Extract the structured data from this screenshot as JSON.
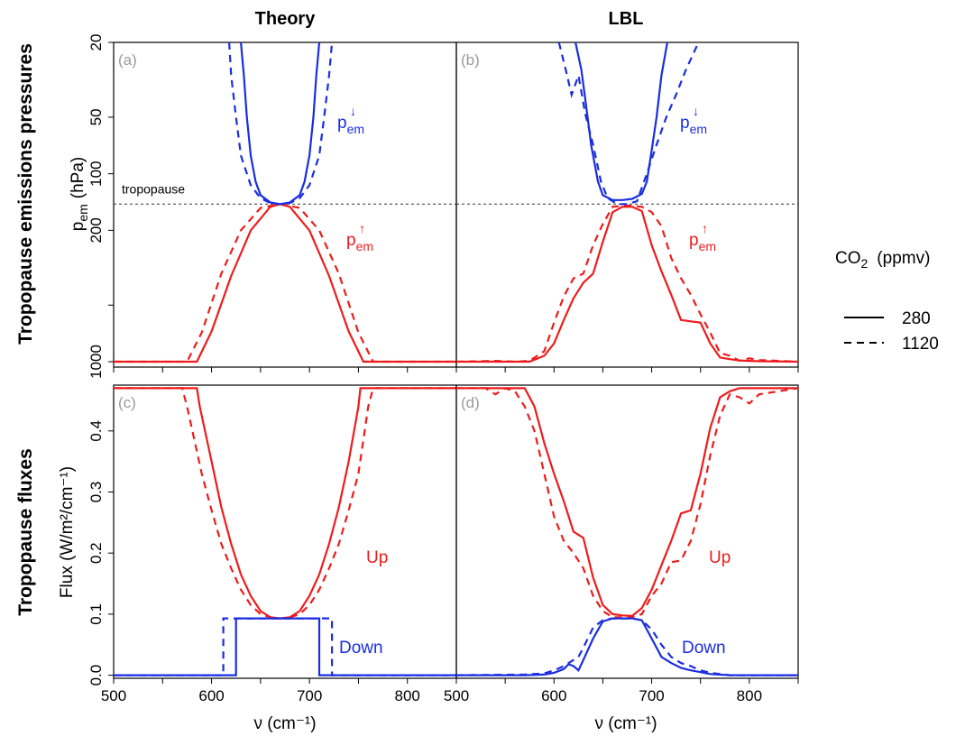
{
  "col_titles": [
    "Theory",
    "LBL"
  ],
  "row_titles": [
    "Tropopause emissions pressures",
    "Tropopause fluxes"
  ],
  "colors": {
    "up": "#ee1c1c",
    "down": "#1b2de0",
    "tag": "#9a9a9a",
    "axis": "#000000"
  },
  "legend": {
    "title_main": "CO",
    "title_sub": "2",
    "title_unit": "(ppmv)",
    "entries": [
      {
        "label": "280",
        "dash": "solid"
      },
      {
        "label": "1120",
        "dash": "dashed"
      }
    ]
  },
  "labels": {
    "pem_main": "p",
    "pem_sub": "em",
    "down_arrow": "↓",
    "up_arrow": "↑",
    "up_text": "Up",
    "down_text": "Down",
    "tropopause": "tropopause"
  },
  "axes": {
    "top_ylabel_main": "p",
    "top_ylabel_sub": "em",
    "top_ylabel_unit": "(hPa)",
    "bottom_ylabel": "Flux  (W/m²/cm⁻¹)",
    "xlabel": "ν  (cm⁻¹)",
    "top_yticks": [
      "20",
      "50",
      "100",
      "200",
      "1000"
    ],
    "bottom_yticks": [
      "0.0",
      "0.1",
      "0.2",
      "0.3",
      "0.4"
    ],
    "xticks": [
      "500",
      "600",
      "700",
      "800"
    ]
  },
  "chart_data": [
    {
      "panel": "(a)",
      "type": "line",
      "y_scale": "log-reversed",
      "ylim": [
        1000,
        20
      ],
      "xlim": [
        500,
        850
      ],
      "tropopause_hPa": 145,
      "series": [
        {
          "name": "Up 280",
          "x": [
            500,
            580,
            585,
            600,
            620,
            640,
            660,
            670,
            680,
            700,
            720,
            740,
            755,
            760,
            850
          ],
          "y": [
            1000,
            1000,
            1000,
            690,
            350,
            200,
            150,
            145,
            150,
            200,
            350,
            690,
            1000,
            1000,
            1000
          ]
        },
        {
          "name": "Up 1120",
          "x": [
            500,
            570,
            575,
            590,
            610,
            630,
            650,
            670,
            690,
            710,
            730,
            750,
            765,
            770,
            850
          ],
          "y": [
            1000,
            1000,
            1000,
            700,
            340,
            200,
            152,
            145,
            152,
            200,
            340,
            700,
            1000,
            1000,
            1000
          ]
        },
        {
          "name": "Down 280",
          "x": [
            630,
            633,
            636,
            640,
            645,
            650,
            660,
            670,
            680,
            690,
            695,
            700,
            704,
            707,
            710
          ],
          "y": [
            20,
            30,
            50,
            80,
            110,
            130,
            142,
            145,
            142,
            130,
            110,
            80,
            50,
            30,
            20
          ]
        },
        {
          "name": "Down 1120",
          "x": [
            618,
            620,
            625,
            630,
            640,
            650,
            660,
            670,
            680,
            690,
            700,
            710,
            715,
            720,
            723
          ],
          "y": [
            20,
            30,
            50,
            80,
            115,
            135,
            143,
            145,
            143,
            135,
            115,
            80,
            50,
            30,
            20
          ]
        }
      ]
    },
    {
      "panel": "(b)",
      "type": "line",
      "y_scale": "log-reversed",
      "ylim": [
        1000,
        20
      ],
      "xlim": [
        500,
        850
      ],
      "tropopause_hPa": 145,
      "series": [
        {
          "name": "Up 280",
          "x": [
            500,
            540,
            560,
            575,
            590,
            600,
            610,
            620,
            630,
            640,
            650,
            660,
            670,
            680,
            690,
            700,
            710,
            720,
            730,
            740,
            750,
            760,
            770,
            780,
            790,
            800,
            810,
            850
          ],
          "y": [
            1000,
            1000,
            1000,
            1000,
            930,
            800,
            600,
            460,
            380,
            340,
            230,
            160,
            150,
            150,
            158,
            240,
            330,
            440,
            600,
            610,
            620,
            800,
            950,
            970,
            985,
            990,
            995,
            1000
          ]
        },
        {
          "name": "Up 1120",
          "x": [
            500,
            540,
            560,
            575,
            590,
            600,
            610,
            620,
            630,
            640,
            650,
            660,
            670,
            680,
            690,
            700,
            710,
            720,
            730,
            740,
            750,
            760,
            770,
            780,
            790,
            800,
            810,
            850
          ],
          "y": [
            1000,
            990,
            1000,
            990,
            880,
            620,
            450,
            360,
            340,
            240,
            185,
            150,
            148,
            148,
            150,
            160,
            190,
            280,
            360,
            440,
            560,
            700,
            900,
            930,
            990,
            960,
            980,
            1000
          ]
        },
        {
          "name": "Down 280",
          "x": [
            622,
            628,
            632,
            638,
            645,
            650,
            660,
            670,
            680,
            690,
            695,
            700,
            705,
            710,
            716
          ],
          "y": [
            20,
            28,
            40,
            70,
            110,
            130,
            138,
            138,
            136,
            128,
            110,
            75,
            50,
            30,
            20
          ]
        },
        {
          "name": "Down 1120",
          "x": [
            605,
            612,
            618,
            625,
            632,
            640,
            648,
            655,
            665,
            675,
            685,
            695,
            705,
            715,
            725,
            735,
            748
          ],
          "y": [
            20,
            28,
            38,
            30,
            48,
            70,
            110,
            135,
            145,
            145,
            140,
            100,
            70,
            50,
            38,
            28,
            20
          ]
        }
      ]
    },
    {
      "panel": "(c)",
      "type": "line",
      "ylim": [
        -0.005,
        0.475
      ],
      "xlim": [
        500,
        850
      ],
      "series": [
        {
          "name": "Up 280",
          "x": [
            500,
            585,
            588,
            600,
            610,
            620,
            630,
            640,
            650,
            660,
            670,
            680,
            690,
            700,
            710,
            720,
            730,
            740,
            750,
            752,
            850
          ],
          "y": [
            0.47,
            0.47,
            0.44,
            0.35,
            0.275,
            0.215,
            0.165,
            0.13,
            0.105,
            0.095,
            0.093,
            0.095,
            0.105,
            0.13,
            0.165,
            0.215,
            0.275,
            0.35,
            0.44,
            0.47,
            0.47
          ]
        },
        {
          "name": "Up 1120",
          "x": [
            500,
            570,
            575,
            590,
            600,
            610,
            620,
            630,
            640,
            650,
            660,
            670,
            680,
            690,
            700,
            710,
            720,
            730,
            740,
            750,
            760,
            765,
            850
          ],
          "y": [
            0.47,
            0.47,
            0.44,
            0.33,
            0.27,
            0.215,
            0.175,
            0.14,
            0.115,
            0.1,
            0.095,
            0.093,
            0.095,
            0.1,
            0.115,
            0.14,
            0.175,
            0.215,
            0.27,
            0.33,
            0.44,
            0.47,
            0.47
          ]
        },
        {
          "name": "Down 280",
          "x": [
            500,
            625,
            625,
            710,
            710,
            850
          ],
          "y": [
            0.0,
            0.0,
            0.093,
            0.093,
            0.0,
            0.0
          ]
        },
        {
          "name": "Down 1120",
          "x": [
            500,
            612,
            612,
            723,
            723,
            850
          ],
          "y": [
            0.0,
            0.0,
            0.093,
            0.093,
            0.0,
            0.0
          ]
        }
      ]
    },
    {
      "panel": "(d)",
      "type": "line",
      "ylim": [
        -0.005,
        0.475
      ],
      "xlim": [
        500,
        850
      ],
      "series": [
        {
          "name": "Up 280",
          "x": [
            500,
            540,
            560,
            570,
            580,
            590,
            600,
            610,
            620,
            630,
            640,
            650,
            660,
            670,
            680,
            690,
            700,
            710,
            720,
            730,
            740,
            750,
            760,
            770,
            780,
            790,
            800,
            810,
            850
          ],
          "y": [
            0.47,
            0.47,
            0.47,
            0.47,
            0.44,
            0.38,
            0.33,
            0.285,
            0.235,
            0.225,
            0.16,
            0.115,
            0.1,
            0.098,
            0.097,
            0.11,
            0.14,
            0.18,
            0.22,
            0.265,
            0.27,
            0.33,
            0.405,
            0.455,
            0.465,
            0.47,
            0.47,
            0.47,
            0.47
          ]
        },
        {
          "name": "Up 1120",
          "x": [
            500,
            530,
            540,
            550,
            560,
            570,
            580,
            590,
            600,
            610,
            620,
            630,
            640,
            650,
            660,
            670,
            680,
            690,
            700,
            710,
            720,
            730,
            740,
            750,
            760,
            770,
            780,
            790,
            800,
            810,
            850
          ],
          "y": [
            0.47,
            0.47,
            0.46,
            0.47,
            0.465,
            0.44,
            0.4,
            0.33,
            0.26,
            0.22,
            0.2,
            0.175,
            0.13,
            0.105,
            0.095,
            0.095,
            0.095,
            0.1,
            0.13,
            0.15,
            0.185,
            0.188,
            0.22,
            0.28,
            0.36,
            0.425,
            0.46,
            0.455,
            0.445,
            0.46,
            0.47
          ]
        },
        {
          "name": "Down 280",
          "x": [
            500,
            570,
            590,
            600,
            610,
            615,
            620,
            625,
            630,
            640,
            650,
            660,
            670,
            680,
            690,
            700,
            710,
            720,
            730,
            740,
            750,
            760,
            780,
            850
          ],
          "y": [
            0.0,
            0.0,
            0.001,
            0.004,
            0.01,
            0.018,
            0.015,
            0.008,
            0.025,
            0.06,
            0.088,
            0.093,
            0.093,
            0.093,
            0.09,
            0.06,
            0.03,
            0.02,
            0.012,
            0.008,
            0.005,
            0.002,
            0.0,
            0.0
          ]
        },
        {
          "name": "Down 1120",
          "x": [
            500,
            570,
            590,
            600,
            610,
            620,
            625,
            630,
            640,
            650,
            660,
            670,
            680,
            690,
            700,
            710,
            720,
            730,
            740,
            750,
            760,
            780,
            850
          ],
          "y": [
            0.0,
            0.001,
            0.003,
            0.008,
            0.015,
            0.025,
            0.03,
            0.045,
            0.078,
            0.09,
            0.093,
            0.093,
            0.093,
            0.09,
            0.075,
            0.05,
            0.03,
            0.02,
            0.015,
            0.008,
            0.004,
            0.0,
            0.0
          ]
        }
      ]
    }
  ]
}
